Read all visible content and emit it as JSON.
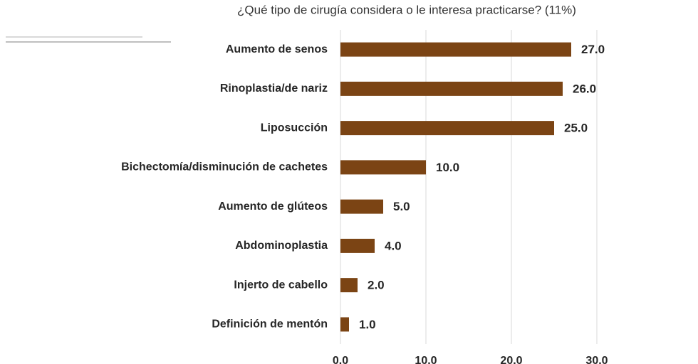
{
  "chart_data": {
    "type": "bar",
    "orientation": "horizontal",
    "title": "¿Qué tipo de cirugía  considera o le interesa practicarse? (11%)",
    "categories": [
      "Aumento de senos",
      "Rinoplastia/de nariz",
      "Liposucción",
      "Bichectomía/disminución de cachetes",
      "Aumento de glúteos",
      "Abdominoplastia",
      "Injerto de cabello",
      "Definición de mentón"
    ],
    "values": [
      27,
      26,
      25,
      10,
      5,
      4,
      2,
      1
    ],
    "value_labels": [
      "27.0",
      "26.0",
      "25.0",
      "10.0",
      "5.0",
      "4.0",
      "2.0",
      "1.0"
    ],
    "color": "#7b4414",
    "xlim": [
      0,
      30
    ],
    "xticks": [
      {
        "value": 0,
        "label": "0.0"
      },
      {
        "value": 10,
        "label": "10.0"
      },
      {
        "value": 20,
        "label": "20.0"
      },
      {
        "value": 30,
        "label": "30.0"
      }
    ],
    "grid": true
  }
}
